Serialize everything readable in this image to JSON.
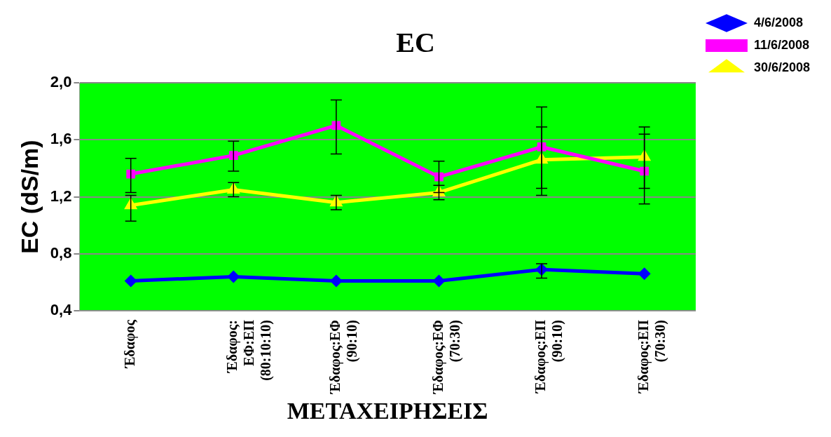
{
  "chart_data": {
    "type": "line",
    "title": "EC",
    "xlabel": "ΜΕΤΑΧΕΙΡΗΣΕΙΣ",
    "ylabel": "EC (dS/m)",
    "categories": [
      "Έδαφος",
      "Έδαφος:\nΕΦ:ΕΠ\n(80:10:10)",
      "Έδαφος:ΕΦ\n(90:10)",
      "Έδαφος:ΕΦ\n(70:30)",
      "Έδαφος:ΕΠ\n(90:10)",
      "Έδαφος:ΕΠ\n(70:30)"
    ],
    "series": [
      {
        "name": "4/6/2008",
        "color": "#0000ff",
        "marker": "diamond",
        "values": [
          0.61,
          0.64,
          0.61,
          0.61,
          0.69,
          0.66
        ],
        "errors": [
          null,
          null,
          null,
          null,
          [
            0.63,
            0.73
          ],
          null
        ]
      },
      {
        "name": "11/6/2008",
        "color": "#ff00ff",
        "marker": "square",
        "values": [
          1.36,
          1.49,
          1.7,
          1.34,
          1.55,
          1.38
        ],
        "errors": [
          [
            1.23,
            1.47
          ],
          [
            1.38,
            1.59
          ],
          [
            1.5,
            1.88
          ],
          [
            1.23,
            1.45
          ],
          [
            1.21,
            1.83
          ],
          [
            1.15,
            1.64
          ]
        ]
      },
      {
        "name": "30/6/2008",
        "color": "#ffff00",
        "marker": "triangle",
        "values": [
          1.14,
          1.25,
          1.16,
          1.23,
          1.46,
          1.48
        ],
        "errors": [
          [
            1.03,
            1.21
          ],
          [
            1.2,
            1.3
          ],
          [
            1.11,
            1.21
          ],
          [
            1.18,
            1.28
          ],
          [
            1.26,
            1.69
          ],
          [
            1.26,
            1.69
          ]
        ]
      }
    ],
    "ylim": [
      0.4,
      2.0
    ],
    "yticks": [
      {
        "value": 0.4,
        "label": "0,4"
      },
      {
        "value": 0.8,
        "label": "0,8"
      },
      {
        "value": 1.2,
        "label": "1,2"
      },
      {
        "value": 1.6,
        "label": "1,6"
      },
      {
        "value": 2.0,
        "label": "2,0"
      }
    ],
    "grid": "y",
    "legend": "right",
    "line_style": "solid"
  }
}
